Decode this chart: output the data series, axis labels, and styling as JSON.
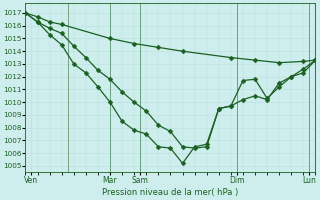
{
  "title": "Pression niveau de la mer( hPa )",
  "ylabel_vals": [
    1005,
    1006,
    1007,
    1008,
    1009,
    1010,
    1011,
    1012,
    1013,
    1014,
    1015,
    1016,
    1017
  ],
  "ylim": [
    1004.5,
    1017.8
  ],
  "xlim": [
    0,
    24
  ],
  "bg_color": "#cdeeed",
  "grid_color_minor": "#b8dede",
  "grid_color_major": "#9fcece",
  "line_color": "#1a6020",
  "marker": "D",
  "markersize": 2.5,
  "linewidth": 0.9,
  "xtick_labels": [
    "Ven",
    "Mar",
    "Sam",
    "Dim",
    "Lun"
  ],
  "xtick_positions": [
    0.5,
    7,
    9.5,
    17.5,
    23.5
  ],
  "vline_positions": [
    3.5,
    7,
    9.5,
    17.5,
    23.5
  ],
  "line1_x": [
    0,
    1,
    2,
    3,
    7,
    9,
    11,
    13,
    17,
    19,
    21,
    23,
    24
  ],
  "line1_y": [
    1017.0,
    1016.7,
    1016.3,
    1016.1,
    1015.0,
    1014.6,
    1014.3,
    1014.0,
    1013.5,
    1013.3,
    1013.1,
    1013.2,
    1013.3
  ],
  "line2_x": [
    0,
    1,
    2,
    3,
    4,
    5,
    6,
    7,
    8,
    9,
    10,
    11,
    12,
    13,
    14,
    15,
    16,
    17,
    18,
    19,
    20,
    21,
    22,
    23,
    24
  ],
  "line2_y": [
    1017.0,
    1016.3,
    1015.8,
    1015.4,
    1014.4,
    1013.5,
    1012.5,
    1011.8,
    1010.8,
    1010.0,
    1009.3,
    1008.2,
    1007.7,
    1006.5,
    1006.4,
    1006.5,
    1009.5,
    1009.7,
    1010.2,
    1010.5,
    1010.2,
    1011.5,
    1012.0,
    1012.6,
    1013.3
  ],
  "line3_x": [
    0,
    1,
    2,
    3,
    4,
    5,
    6,
    7,
    8,
    9,
    10,
    11,
    12,
    13,
    14,
    15,
    16,
    17,
    18,
    19,
    20,
    21,
    22,
    23,
    24
  ],
  "line3_y": [
    1017.0,
    1016.3,
    1015.3,
    1014.5,
    1013.0,
    1012.3,
    1011.2,
    1010.0,
    1008.5,
    1007.8,
    1007.5,
    1006.5,
    1006.4,
    1005.2,
    1006.5,
    1006.7,
    1009.5,
    1009.7,
    1011.7,
    1011.8,
    1010.3,
    1011.2,
    1012.0,
    1012.3,
    1013.3
  ]
}
